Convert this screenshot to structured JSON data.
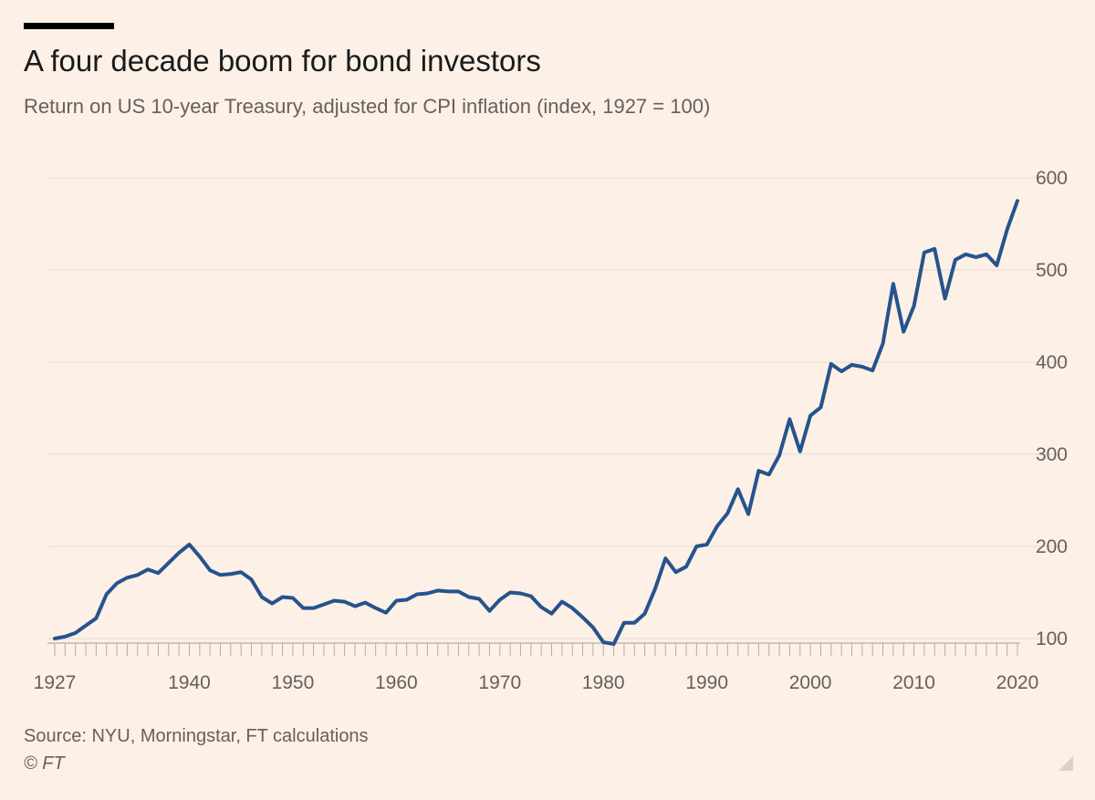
{
  "header": {
    "title": "A four decade boom for bond investors",
    "subtitle": "Return on US 10-year Treasury, adjusted for CPI inflation (index, 1927 = 100)"
  },
  "footer": {
    "source": "Source: NYU, Morningstar, FT calculations",
    "copyright": "© FT"
  },
  "colors": {
    "background": "#fdf0e6",
    "line": "#26538d",
    "grid": "#e6dcd4",
    "text": "#66605c"
  },
  "chart_data": {
    "type": "line",
    "title": "A four decade boom for bond investors",
    "subtitle": "Return on US 10-year Treasury, adjusted for CPI inflation (index, 1927 = 100)",
    "xlabel": "",
    "ylabel": "",
    "xlim": [
      1927,
      2020
    ],
    "ylim": [
      95,
      600
    ],
    "yticks": [
      100,
      200,
      300,
      400,
      500,
      600
    ],
    "xticks": [
      1927,
      1940,
      1950,
      1960,
      1970,
      1980,
      1990,
      2000,
      2010,
      2020
    ],
    "y_axis_side": "right",
    "grid": true,
    "series": [
      {
        "name": "",
        "color": "#26538d",
        "x": [
          1927,
          1928,
          1929,
          1930,
          1931,
          1932,
          1933,
          1934,
          1935,
          1936,
          1937,
          1938,
          1939,
          1940,
          1941,
          1942,
          1943,
          1944,
          1945,
          1946,
          1947,
          1948,
          1949,
          1950,
          1951,
          1952,
          1953,
          1954,
          1955,
          1956,
          1957,
          1958,
          1959,
          1960,
          1961,
          1962,
          1963,
          1964,
          1965,
          1966,
          1967,
          1968,
          1969,
          1970,
          1971,
          1972,
          1973,
          1974,
          1975,
          1976,
          1977,
          1978,
          1979,
          1980,
          1981,
          1982,
          1983,
          1984,
          1985,
          1986,
          1987,
          1988,
          1989,
          1990,
          1991,
          1992,
          1993,
          1994,
          1995,
          1996,
          1997,
          1998,
          1999,
          2000,
          2001,
          2002,
          2003,
          2004,
          2005,
          2006,
          2007,
          2008,
          2009,
          2010,
          2011,
          2012,
          2013,
          2014,
          2015,
          2016,
          2017,
          2018,
          2019,
          2020
        ],
        "values": [
          100,
          102,
          106,
          114,
          122,
          148,
          160,
          166,
          169,
          175,
          171,
          182,
          193,
          202,
          189,
          174,
          169,
          170,
          172,
          164,
          145,
          138,
          145,
          144,
          133,
          133,
          137,
          141,
          140,
          135,
          139,
          133,
          128,
          141,
          142,
          148,
          149,
          152,
          151,
          151,
          145,
          143,
          130,
          142,
          150,
          149,
          146,
          134,
          127,
          140,
          133,
          123,
          112,
          96,
          94,
          117,
          117,
          127,
          154,
          187,
          172,
          178,
          200,
          202,
          222,
          236,
          262,
          235,
          282,
          278,
          299,
          338,
          303,
          342,
          351,
          398,
          390,
          397,
          395,
          391,
          420,
          485,
          433,
          461,
          519,
          523,
          469,
          511,
          517,
          514,
          517,
          505,
          544,
          575
        ]
      }
    ]
  }
}
